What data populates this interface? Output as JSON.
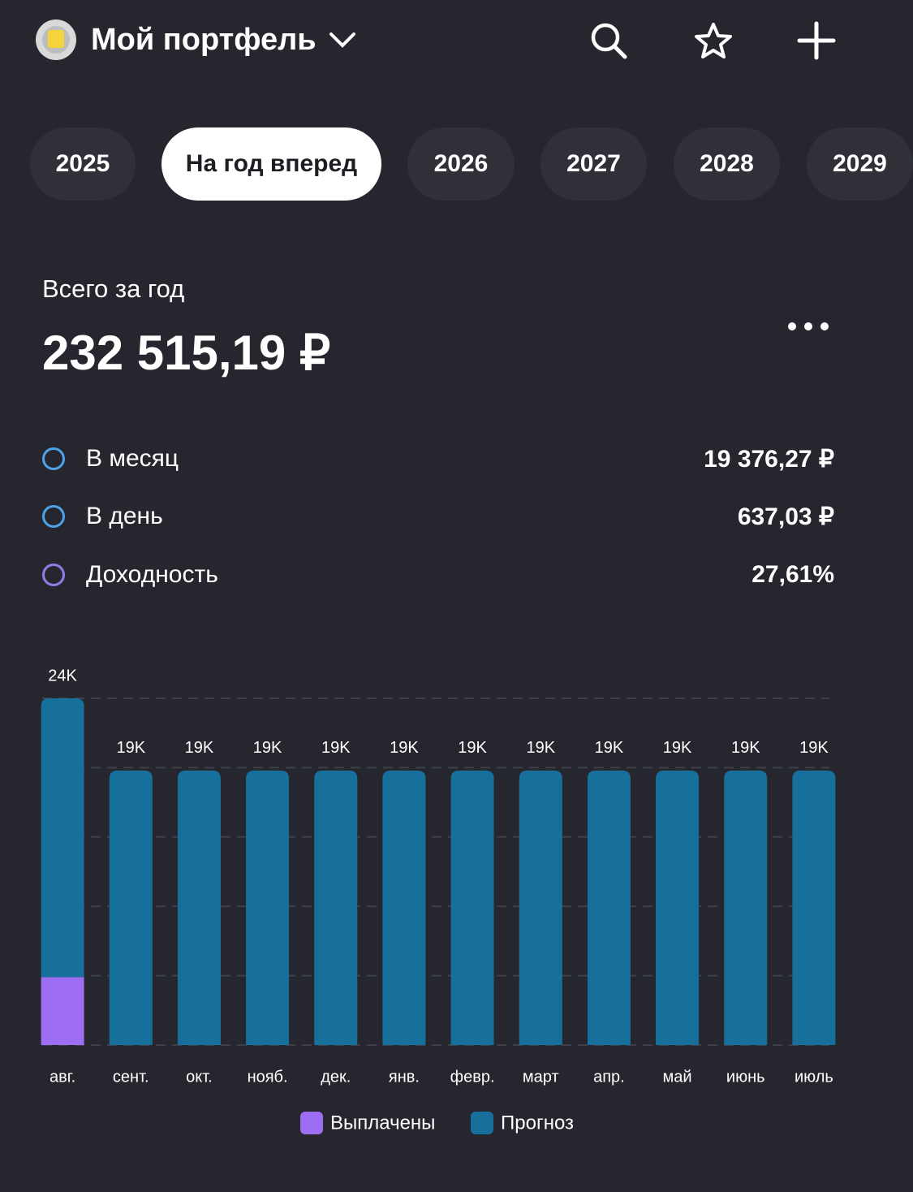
{
  "header": {
    "title": "Мой портфель"
  },
  "tabs": [
    "2025",
    "На год вперед",
    "2026",
    "2027",
    "2028",
    "2029"
  ],
  "summary": {
    "label": "Всего за год",
    "amount": "232 515,19 ₽"
  },
  "stats": [
    {
      "label": "В месяц",
      "value": "19 376,27 ₽"
    },
    {
      "label": "В день",
      "value": "637,03 ₽"
    },
    {
      "label": "Доходность",
      "value": "27,61%"
    }
  ],
  "chart_data": {
    "type": "stacked_bar",
    "categories": [
      "авг.",
      "сент.",
      "окт.",
      "нояб.",
      "дек.",
      "янв.",
      "февр.",
      "март",
      "апр.",
      "май",
      "июнь",
      "июль"
    ],
    "series": [
      {
        "name": "Выплачены",
        "color": "#9d6ef2",
        "values": [
          4700,
          0,
          0,
          0,
          0,
          0,
          0,
          0,
          0,
          0,
          0,
          0
        ]
      },
      {
        "name": "Прогноз",
        "color": "#16709b",
        "values": [
          19300,
          19000,
          19000,
          19000,
          19000,
          19000,
          19000,
          19000,
          19000,
          19000,
          19000,
          19000
        ]
      }
    ],
    "total_labels": [
      "24K",
      "19K",
      "19K",
      "19K",
      "19K",
      "19K",
      "19K",
      "19K",
      "19K",
      "19K",
      "19K",
      "19K"
    ],
    "ylim": [
      0,
      24000
    ],
    "yticks": [
      0,
      4800,
      9600,
      14400,
      19200,
      24000
    ],
    "grid": true
  }
}
